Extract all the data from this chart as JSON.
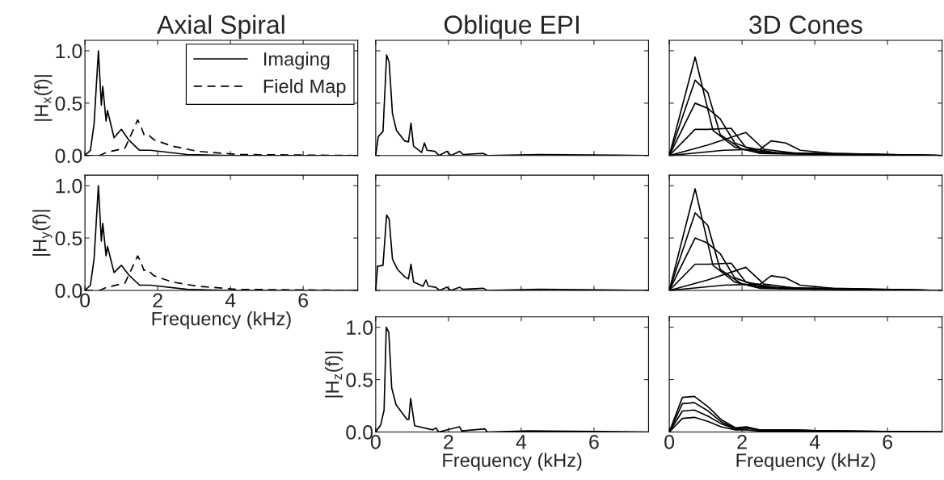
{
  "chart_data": [
    {
      "type": "line",
      "title": "Axial Spiral",
      "ylabel": "|H$_{x}$(f)|",
      "xlim": [
        0,
        7.5
      ],
      "ylim": [
        0,
        1.1
      ],
      "yticks": [
        {
          "value": 0,
          "label": "0.0"
        },
        {
          "value": 0.5,
          "label": "0.5"
        },
        {
          "value": 1,
          "label": "1.0"
        }
      ],
      "tick_labels": "y",
      "legend": "upper right",
      "series": [
        {
          "name": "Imaging",
          "color": "#000000",
          "line_style": "solid",
          "x": [
            0,
            0.15,
            0.25,
            0.37,
            0.45,
            0.49,
            0.58,
            0.62,
            0.8,
            1.0,
            1.2,
            1.5,
            1.8,
            2.8,
            4,
            7.5
          ],
          "values": [
            0,
            0.05,
            0.3,
            1.0,
            0.48,
            0.66,
            0.33,
            0.43,
            0.17,
            0.25,
            0.15,
            0.05,
            0.05,
            0.01,
            0,
            0
          ]
        },
        {
          "name": "Field Map",
          "color": "#000000",
          "line_style": "dashed",
          "x": [
            0,
            0.4,
            0.6,
            1.1,
            1.45,
            1.55,
            1.62,
            1.7,
            1.9,
            2.4,
            3.1,
            4.2,
            7.5
          ],
          "values": [
            0,
            0,
            0.03,
            0.07,
            0.34,
            0.27,
            0.2,
            0.21,
            0.15,
            0.09,
            0.04,
            0.01,
            0
          ]
        }
      ]
    },
    {
      "type": "line",
      "title": "Oblique EPI",
      "xlim": [
        0,
        7.5
      ],
      "ylim": [
        0,
        1.1
      ],
      "tick_labels": false,
      "series": [
        {
          "color": "#000000",
          "line_style": "solid",
          "x": [
            0,
            0.07,
            0.2,
            0.3,
            0.37,
            0.46,
            0.57,
            0.79,
            0.9,
            0.97,
            1.04,
            1.26,
            1.34,
            1.41,
            1.63,
            1.74,
            1.96,
            2.07,
            2.31,
            2.4,
            2.96,
            3.07,
            4.5,
            7.5
          ],
          "values": [
            0,
            0.18,
            0.23,
            0.96,
            0.89,
            0.4,
            0.24,
            0.14,
            0.13,
            0.31,
            0.09,
            0.03,
            0.12,
            0.05,
            0.04,
            0,
            0.04,
            0,
            0.04,
            0.01,
            0.02,
            0,
            0.01,
            0
          ]
        }
      ]
    },
    {
      "type": "line",
      "title": "3D Cones",
      "xlim": [
        0,
        7.5
      ],
      "ylim": [
        0,
        1.1
      ],
      "tick_labels": false,
      "series": [
        {
          "color": "#000000",
          "line_style": "solid",
          "x": [
            0,
            0.71,
            1.2,
            1.8,
            2.5,
            4,
            7.5
          ],
          "values": [
            0,
            0.94,
            0.24,
            0.08,
            0.02,
            0.01,
            0
          ]
        },
        {
          "color": "#000000",
          "line_style": "solid",
          "x": [
            0,
            0.71,
            1.06,
            1.4,
            2,
            3,
            7.5
          ],
          "values": [
            0,
            0.72,
            0.6,
            0.2,
            0.06,
            0.02,
            0
          ]
        },
        {
          "color": "#000000",
          "line_style": "solid",
          "x": [
            0,
            0.71,
            1.06,
            1.4,
            1.8,
            2.5,
            7.5
          ],
          "values": [
            0,
            0.5,
            0.45,
            0.35,
            0.12,
            0.03,
            0
          ]
        },
        {
          "color": "#000000",
          "line_style": "solid",
          "x": [
            0,
            0.71,
            1.06,
            1.7,
            2.1,
            3,
            7.5
          ],
          "values": [
            0,
            0.25,
            0.25,
            0.26,
            0.08,
            0.02,
            0
          ]
        },
        {
          "color": "#000000",
          "line_style": "solid",
          "x": [
            0,
            1.06,
            2.1,
            2.6,
            3.5,
            7.5
          ],
          "values": [
            0,
            0.1,
            0.22,
            0.06,
            0.02,
            0
          ]
        },
        {
          "color": "#000000",
          "line_style": "solid",
          "x": [
            0,
            1.5,
            2.5,
            2.8,
            3.2,
            3.6,
            4.5,
            7.5
          ],
          "values": [
            0,
            0.05,
            0.06,
            0.14,
            0.12,
            0.05,
            0.02,
            0
          ]
        }
      ]
    },
    {
      "type": "line",
      "xlabel": "Frequency (kHz)",
      "ylabel": "|H$_{y}$(f)|",
      "xlim": [
        0,
        7.5
      ],
      "ylim": [
        0,
        1.1
      ],
      "xticks": [
        0,
        2,
        4,
        6
      ],
      "yticks": [
        {
          "value": 0,
          "label": "0.0"
        },
        {
          "value": 0.5,
          "label": "0.5"
        },
        {
          "value": 1,
          "label": "1.0"
        }
      ],
      "series": [
        {
          "color": "#000000",
          "line_style": "solid",
          "x": [
            0,
            0.15,
            0.25,
            0.37,
            0.45,
            0.49,
            0.58,
            0.62,
            0.8,
            1.0,
            1.2,
            1.5,
            1.8,
            2.8,
            4,
            7.5
          ],
          "values": [
            0,
            0.05,
            0.3,
            1.0,
            0.47,
            0.64,
            0.33,
            0.42,
            0.17,
            0.24,
            0.15,
            0.05,
            0.05,
            0.01,
            0,
            0
          ]
        },
        {
          "color": "#000000",
          "line_style": "dashed",
          "x": [
            0,
            0.4,
            0.6,
            1.1,
            1.45,
            1.55,
            1.62,
            1.7,
            1.9,
            2.4,
            3.1,
            4.2,
            7.5
          ],
          "values": [
            0,
            0,
            0.03,
            0.07,
            0.33,
            0.26,
            0.19,
            0.2,
            0.14,
            0.08,
            0.04,
            0.01,
            0
          ]
        }
      ]
    },
    {
      "type": "line",
      "xlim": [
        0,
        7.5
      ],
      "ylim": [
        0,
        1.1
      ],
      "tick_labels": false,
      "series": [
        {
          "color": "#000000",
          "line_style": "solid",
          "x": [
            0,
            0.05,
            0.2,
            0.3,
            0.37,
            0.46,
            0.6,
            0.8,
            0.9,
            0.97,
            1.04,
            1.3,
            1.38,
            1.45,
            1.65,
            1.75,
            1.96,
            2.07,
            2.31,
            2.4,
            2.96,
            3.07,
            4.5,
            7.5
          ],
          "values": [
            0,
            0.23,
            0.24,
            0.72,
            0.68,
            0.3,
            0.2,
            0.13,
            0.11,
            0.25,
            0.08,
            0.04,
            0.1,
            0.04,
            0.03,
            0,
            0.03,
            0,
            0.03,
            0.01,
            0.02,
            0,
            0.01,
            0
          ]
        }
      ]
    },
    {
      "type": "line",
      "xlim": [
        0,
        7.5
      ],
      "ylim": [
        0,
        1.1
      ],
      "tick_labels": false,
      "series": [
        {
          "color": "#000000",
          "line_style": "solid",
          "x": [
            0,
            0.71,
            1.2,
            1.8,
            2.5,
            4,
            7.5
          ],
          "values": [
            0,
            0.97,
            0.24,
            0.08,
            0.02,
            0.01,
            0
          ]
        },
        {
          "color": "#000000",
          "line_style": "solid",
          "x": [
            0,
            0.71,
            1.06,
            1.4,
            2,
            3,
            7.5
          ],
          "values": [
            0,
            0.74,
            0.62,
            0.2,
            0.06,
            0.02,
            0
          ]
        },
        {
          "color": "#000000",
          "line_style": "solid",
          "x": [
            0,
            0.71,
            1.06,
            1.4,
            1.8,
            2.5,
            7.5
          ],
          "values": [
            0,
            0.5,
            0.45,
            0.35,
            0.12,
            0.03,
            0
          ]
        },
        {
          "color": "#000000",
          "line_style": "solid",
          "x": [
            0,
            0.71,
            1.06,
            1.7,
            2.1,
            3,
            7.5
          ],
          "values": [
            0,
            0.25,
            0.25,
            0.26,
            0.08,
            0.02,
            0
          ]
        },
        {
          "color": "#000000",
          "line_style": "solid",
          "x": [
            0,
            1.06,
            2.1,
            2.6,
            3.5,
            7.5
          ],
          "values": [
            0,
            0.1,
            0.22,
            0.06,
            0.02,
            0
          ]
        },
        {
          "color": "#000000",
          "line_style": "solid",
          "x": [
            0,
            1.5,
            2.5,
            2.8,
            3.2,
            3.6,
            4.5,
            7.5
          ],
          "values": [
            0,
            0.05,
            0.06,
            0.14,
            0.12,
            0.05,
            0.02,
            0
          ]
        }
      ]
    },
    {
      "type": "line",
      "xlabel": "Frequency (kHz)",
      "ylabel": "|H$_{z}$(f)|",
      "xlim": [
        0,
        7.5
      ],
      "ylim": [
        0,
        1.1
      ],
      "xticks": [
        0,
        2,
        4,
        6
      ],
      "yticks": [
        {
          "value": 0,
          "label": "0.0"
        },
        {
          "value": 0.5,
          "label": "0.5"
        },
        {
          "value": 1,
          "label": "1.0"
        }
      ],
      "series": [
        {
          "color": "#000000",
          "line_style": "solid",
          "x": [
            0,
            0.14,
            0.23,
            0.29,
            0.36,
            0.44,
            0.56,
            0.86,
            0.91,
            0.96,
            1.07,
            1.57,
            1.65,
            1.73,
            2.3,
            2.37,
            3.0,
            3.07,
            4.2,
            7.5
          ],
          "values": [
            0,
            0.07,
            0.21,
            1.0,
            0.95,
            0.42,
            0.26,
            0.12,
            0.12,
            0.32,
            0.06,
            0.02,
            0.04,
            0,
            0.05,
            0.01,
            0.03,
            0,
            0.01,
            0
          ]
        }
      ]
    },
    {
      "type": "line",
      "xlabel": "Frequency (kHz)",
      "xlim": [
        0,
        7.5
      ],
      "ylim": [
        0,
        1.1
      ],
      "xticks": [
        0,
        2,
        4,
        6
      ],
      "tick_labels": "x",
      "series": [
        {
          "color": "#000000",
          "line_style": "solid",
          "x": [
            0,
            0.36,
            0.69,
            1.07,
            1.42,
            1.82,
            2.12,
            2.47,
            3.2,
            4.3,
            7.5
          ],
          "values": [
            0,
            0.33,
            0.34,
            0.24,
            0.12,
            0.04,
            0.05,
            0.02,
            0.02,
            0.01,
            0
          ]
        },
        {
          "color": "#000000",
          "line_style": "solid",
          "x": [
            0,
            0.36,
            0.69,
            1.07,
            1.42,
            1.82,
            2.12,
            2.47,
            3.2,
            4.3,
            7.5
          ],
          "values": [
            0,
            0.27,
            0.28,
            0.2,
            0.1,
            0.03,
            0.04,
            0.02,
            0.02,
            0.01,
            0
          ]
        },
        {
          "color": "#000000",
          "line_style": "solid",
          "x": [
            0,
            0.36,
            0.69,
            1.07,
            1.42,
            1.82,
            2.12,
            2.47,
            3.2,
            4.3,
            7.5
          ],
          "values": [
            0,
            0.2,
            0.21,
            0.15,
            0.08,
            0.03,
            0.04,
            0.02,
            0.02,
            0.01,
            0
          ]
        },
        {
          "color": "#000000",
          "line_style": "solid",
          "x": [
            0,
            0.36,
            0.69,
            1.07,
            1.42,
            1.82,
            2.12,
            2.47,
            3.2,
            4.3,
            7.5
          ],
          "values": [
            0,
            0.13,
            0.14,
            0.1,
            0.05,
            0.02,
            0.02,
            0.01,
            0.01,
            0,
            0
          ]
        }
      ]
    }
  ]
}
